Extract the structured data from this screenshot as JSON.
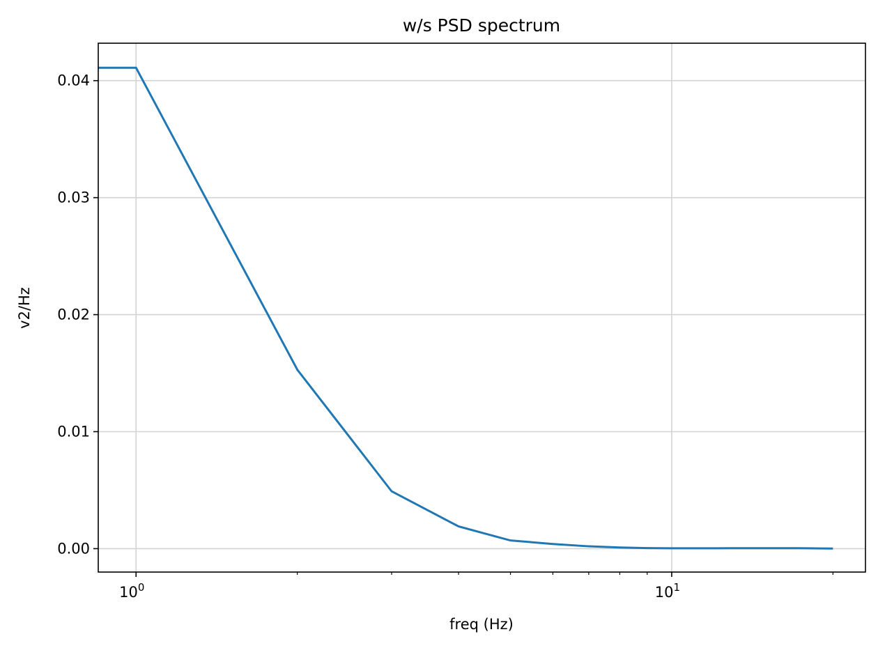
{
  "chart_data": {
    "type": "line",
    "title": "w/s PSD spectrum",
    "xlabel": "freq (Hz)",
    "ylabel": "v2/Hz",
    "xscale": "log",
    "xlim": [
      0.85,
      23
    ],
    "ylim": [
      -0.002,
      0.0432
    ],
    "grid": true,
    "line_color": "#1f77b4",
    "x_ticks": [
      {
        "value": 1,
        "base": "10",
        "exp": "0"
      },
      {
        "value": 10,
        "base": "10",
        "exp": "1"
      }
    ],
    "x_minor_ticks": [
      2,
      3,
      4,
      5,
      6,
      7,
      8,
      9,
      20
    ],
    "y_ticks": [
      {
        "value": 0.0,
        "label": "0.00"
      },
      {
        "value": 0.01,
        "label": "0.01"
      },
      {
        "value": 0.02,
        "label": "0.02"
      },
      {
        "value": 0.03,
        "label": "0.03"
      },
      {
        "value": 0.04,
        "label": "0.04"
      }
    ],
    "series": [
      {
        "x": [
          0.5,
          1,
          2,
          3,
          4,
          5,
          6,
          7,
          8,
          9,
          10,
          11,
          12,
          13,
          14,
          15,
          16,
          17,
          18,
          19,
          20
        ],
        "y": [
          0.0411,
          0.0411,
          0.0153,
          0.0049,
          0.0019,
          0.0007,
          0.0004,
          0.0002,
          0.0001,
          5e-05,
          3e-05,
          3e-05,
          3e-05,
          4e-05,
          4e-05,
          4e-05,
          4e-05,
          4e-05,
          3e-05,
          2e-05,
          1e-05
        ]
      }
    ]
  }
}
